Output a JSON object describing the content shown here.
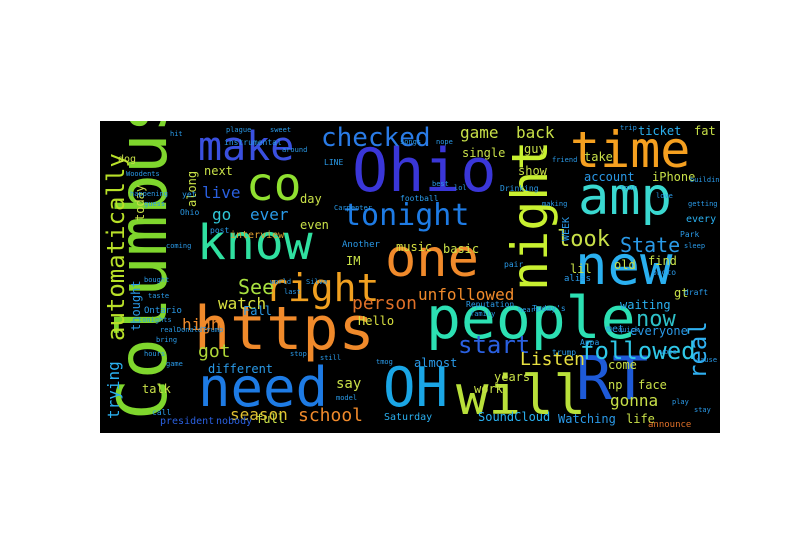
{
  "words": [
    {
      "id": "columbus",
      "text": "Columbus",
      "color": "#7fd62d"
    },
    {
      "id": "https",
      "text": "https",
      "color": "#f08a2b"
    },
    {
      "id": "people",
      "text": "people",
      "color": "#2ce0b3"
    },
    {
      "id": "ohio",
      "text": "Ohio",
      "color": "#3a36d8"
    },
    {
      "id": "oh",
      "text": "OH",
      "color": "#1aa6e6"
    },
    {
      "id": "will",
      "text": "will",
      "color": "#b9e03a"
    },
    {
      "id": "rt",
      "text": "RT",
      "color": "#1e5ad8"
    },
    {
      "id": "need",
      "text": "need",
      "color": "#1e7be4"
    },
    {
      "id": "know",
      "text": "know",
      "color": "#30e0a0"
    },
    {
      "id": "one",
      "text": "one",
      "color": "#f08a2b"
    },
    {
      "id": "new",
      "text": "new",
      "color": "#2ab0f0"
    },
    {
      "id": "amp",
      "text": "amp",
      "color": "#3ad8d0"
    },
    {
      "id": "time",
      "text": "time",
      "color": "#f5a020"
    },
    {
      "id": "night",
      "text": "night",
      "color": "#c8f030"
    },
    {
      "id": "co",
      "text": "co",
      "color": "#8fe030"
    },
    {
      "id": "make",
      "text": "make",
      "color": "#3a50e0"
    },
    {
      "id": "right",
      "text": "right",
      "color": "#f0a020"
    },
    {
      "id": "tonight",
      "text": "tonight",
      "color": "#1e7be4"
    },
    {
      "id": "checked",
      "text": "checked",
      "color": "#2a7be6"
    },
    {
      "id": "automatically",
      "text": "automatically",
      "color": "#b8e028"
    },
    {
      "id": "followed",
      "text": "followed",
      "color": "#30c8e8"
    },
    {
      "id": "real",
      "text": "real",
      "color": "#30b0f0"
    },
    {
      "id": "now",
      "text": "now",
      "color": "#2ec0c8"
    },
    {
      "id": "look",
      "text": "look",
      "color": "#c8e048"
    },
    {
      "id": "state",
      "text": "State",
      "color": "#2a9ae8"
    },
    {
      "id": "start",
      "text": "start",
      "color": "#2a60e0"
    },
    {
      "id": "person",
      "text": "person",
      "color": "#e07028"
    },
    {
      "id": "unfollowed",
      "text": "unfollowed",
      "color": "#f08a2b"
    },
    {
      "id": "listen",
      "text": "Listen",
      "color": "#e8e040"
    },
    {
      "id": "school",
      "text": "school",
      "color": "#f08a2b"
    },
    {
      "id": "see",
      "text": "See",
      "color": "#a8e040"
    },
    {
      "id": "watch",
      "text": "watch",
      "color": "#d8e040"
    },
    {
      "id": "got",
      "text": "got",
      "color": "#b0d838"
    },
    {
      "id": "high",
      "text": "high",
      "color": "#f08a2b"
    },
    {
      "id": "season",
      "text": "season",
      "color": "#e0c030"
    },
    {
      "id": "go",
      "text": "go",
      "color": "#30c8d8"
    },
    {
      "id": "ever",
      "text": "ever",
      "color": "#2a9ae8"
    },
    {
      "id": "live",
      "text": "live",
      "color": "#2a60e0"
    },
    {
      "id": "game",
      "text": "game",
      "color": "#c8e048"
    },
    {
      "id": "back",
      "text": "back",
      "color": "#c8e048"
    },
    {
      "id": "trying",
      "text": "trying",
      "color": "#2ab0f0"
    },
    {
      "id": "gonna",
      "text": "gonna",
      "color": "#c8e048"
    },
    {
      "id": "say",
      "text": "say",
      "color": "#c8e048"
    },
    {
      "id": "fall",
      "text": "Fall",
      "color": "#2a9ae8"
    },
    {
      "id": "hello",
      "text": "Hello",
      "color": "#d8e040"
    },
    {
      "id": "music",
      "text": "music",
      "color": "#d8e040"
    },
    {
      "id": "basic",
      "text": "basic",
      "color": "#c8e048"
    },
    {
      "id": "ticket",
      "text": "ticket",
      "color": "#2ab0f0"
    },
    {
      "id": "fat",
      "text": "fat",
      "color": "#c8e048"
    },
    {
      "id": "iphone",
      "text": "iPhone",
      "color": "#c8e048"
    },
    {
      "id": "take",
      "text": "take",
      "color": "#c8e048"
    },
    {
      "id": "come",
      "text": "come",
      "color": "#c8e048"
    },
    {
      "id": "old",
      "text": "old",
      "color": "#c8e048"
    },
    {
      "id": "find",
      "text": "find",
      "color": "#c8e048"
    },
    {
      "id": "gt",
      "text": "gt",
      "color": "#c8e048"
    },
    {
      "id": "lil",
      "text": "lil",
      "color": "#c8e048"
    },
    {
      "id": "everyone",
      "text": "everyone",
      "color": "#2a9ae8"
    },
    {
      "id": "face",
      "text": "face",
      "color": "#c8e048"
    },
    {
      "id": "np",
      "text": "np",
      "color": "#c8e048"
    },
    {
      "id": "waiting",
      "text": "waiting",
      "color": "#2ab0f0"
    },
    {
      "id": "life",
      "text": "life",
      "color": "#c8e048"
    },
    {
      "id": "watching",
      "text": "Watching",
      "color": "#2a9ae8"
    },
    {
      "id": "soundcloud",
      "text": "SoundCloud",
      "color": "#2ab0f0"
    },
    {
      "id": "saturday",
      "text": "Saturday",
      "color": "#2ab0f0"
    },
    {
      "id": "full",
      "text": "full",
      "color": "#c8e048"
    },
    {
      "id": "different",
      "text": "different",
      "color": "#2a9ae8"
    },
    {
      "id": "talk",
      "text": "talk",
      "color": "#c8e048"
    },
    {
      "id": "years",
      "text": "years",
      "color": "#c8e048"
    },
    {
      "id": "work",
      "text": "work",
      "color": "#c8e048"
    },
    {
      "id": "almost",
      "text": "almost",
      "color": "#2a9ae8"
    },
    {
      "id": "day",
      "text": "day",
      "color": "#c8e048"
    },
    {
      "id": "even",
      "text": "even",
      "color": "#c8e048"
    },
    {
      "id": "interview",
      "text": "interview",
      "color": "#e0a030"
    },
    {
      "id": "single",
      "text": "single",
      "color": "#c8e048"
    },
    {
      "id": "show",
      "text": "show",
      "color": "#c8e048"
    },
    {
      "id": "account",
      "text": "account",
      "color": "#2a9ae8"
    },
    {
      "id": "guy",
      "text": "guy",
      "color": "#c8e048"
    },
    {
      "id": "thought",
      "text": "thought",
      "color": "#2a9ae8"
    },
    {
      "id": "along",
      "text": "along",
      "color": "#c8e048"
    },
    {
      "id": "next",
      "text": "next",
      "color": "#c8e048"
    },
    {
      "id": "today",
      "text": "today",
      "color": "#c8e048"
    },
    {
      "id": "im",
      "text": "IM",
      "color": "#c8e048"
    },
    {
      "id": "another",
      "text": "Another",
      "color": "#2a9ae8"
    },
    {
      "id": "president",
      "text": "president",
      "color": "#2a60e0"
    },
    {
      "id": "nobody",
      "text": "nobody",
      "color": "#2a60e0"
    },
    {
      "id": "announce",
      "text": "announce",
      "color": "#e07028"
    },
    {
      "id": "dog",
      "text": "dog",
      "color": "#c8e048"
    },
    {
      "id": "week",
      "text": "WEEK",
      "color": "#2a9ae8"
    },
    {
      "id": "met",
      "text": "met",
      "color": "#2a9ae8"
    },
    {
      "id": "every",
      "text": "every",
      "color": "#2ab0f0"
    },
    {
      "id": "appa",
      "text": "Appa",
      "color": "#2a9ae8"
    },
    {
      "id": "alias",
      "text": "alias",
      "color": "#2a9ae8"
    },
    {
      "id": "pair",
      "text": "pair",
      "color": "#2a9ae8"
    },
    {
      "id": "ontario",
      "text": "Ontario",
      "color": "#2a9ae8"
    },
    {
      "id": "call",
      "text": "call",
      "color": "#2a9ae8"
    },
    {
      "id": "post",
      "text": "post",
      "color": "#2a9ae8"
    },
    {
      "id": "football",
      "text": "football",
      "color": "#2a9ae8"
    },
    {
      "id": "drinking",
      "text": "Drinking",
      "color": "#2a9ae8"
    },
    {
      "id": "trump",
      "text": "trump",
      "color": "#2a9ae8"
    },
    {
      "id": "photo",
      "text": "photo",
      "color": "#2a9ae8"
    },
    {
      "id": "reputation",
      "text": "Reputation",
      "color": "#2a9ae8"
    },
    {
      "id": "park",
      "text": "Park",
      "color": "#2a9ae8"
    },
    {
      "id": "todays",
      "text": "Today's",
      "color": "#2a9ae8"
    },
    {
      "id": "carpenter",
      "text": "Carpenter",
      "color": "#2a9ae8"
    },
    {
      "id": "line",
      "text": "LINE",
      "color": "#2a9ae8"
    },
    {
      "id": "instrumental",
      "text": "instrumental",
      "color": "#2a9ae8"
    },
    {
      "id": "building",
      "text": "building",
      "color": "#2a9ae8"
    },
    {
      "id": "getting",
      "text": "getting",
      "color": "#2a9ae8"
    },
    {
      "id": "yet",
      "text": "yet",
      "color": "#2a9ae8"
    },
    {
      "id": "draft",
      "text": "draft",
      "color": "#2a9ae8"
    },
    {
      "id": "ohio2",
      "text": "Ohio",
      "color": "#2a9ae8"
    },
    {
      "id": "songs",
      "text": "songs",
      "color": "#2a9ae8"
    },
    {
      "id": "nope",
      "text": "nope",
      "color": "#2a9ae8"
    },
    {
      "id": "realdonaldtrump",
      "text": "realDonaldTrump",
      "color": "#2a9ae8"
    },
    {
      "id": "model",
      "text": "model",
      "color": "#2a9ae8"
    },
    {
      "id": "tmog",
      "text": "tmog",
      "color": "#2a9ae8"
    },
    {
      "id": "silva",
      "text": "Silva",
      "color": "#2a9ae8"
    },
    {
      "id": "world",
      "text": "world",
      "color": "#2a9ae8"
    },
    {
      "id": "last",
      "text": "last",
      "color": "#2a9ae8"
    },
    {
      "id": "still",
      "text": "still",
      "color": "#2a9ae8"
    },
    {
      "id": "stop",
      "text": "stop",
      "color": "#2a9ae8"
    },
    {
      "id": "hours",
      "text": "hours",
      "color": "#2a9ae8"
    },
    {
      "id": "bring",
      "text": "bring",
      "color": "#2a9ae8"
    },
    {
      "id": "game2",
      "text": "game",
      "color": "#2a9ae8"
    },
    {
      "id": "quick",
      "text": "quick",
      "color": "#2a9ae8"
    },
    {
      "id": "heart",
      "text": "heart",
      "color": "#2a9ae8"
    },
    {
      "id": "family",
      "text": "family",
      "color": "#2a9ae8"
    },
    {
      "id": "sweet",
      "text": "sweet",
      "color": "#2a9ae8"
    },
    {
      "id": "plague",
      "text": "plague",
      "color": "#2a9ae8"
    },
    {
      "id": "hit",
      "text": "hit",
      "color": "#2a9ae8"
    },
    {
      "id": "around",
      "text": "around",
      "color": "#2a9ae8"
    },
    {
      "id": "tour",
      "text": "tour",
      "color": "#2a9ae8"
    },
    {
      "id": "love",
      "text": "love",
      "color": "#2a9ae8"
    },
    {
      "id": "friend",
      "text": "friend",
      "color": "#2a9ae8"
    },
    {
      "id": "making",
      "text": "making",
      "color": "#2a9ae8"
    },
    {
      "id": "best",
      "text": "best",
      "color": "#2a9ae8"
    },
    {
      "id": "lol",
      "text": "lol",
      "color": "#2a9ae8"
    },
    {
      "id": "trip",
      "text": "trip",
      "color": "#2a9ae8"
    },
    {
      "id": "coming",
      "text": "coming",
      "color": "#2a9ae8"
    },
    {
      "id": "woodents",
      "text": "Woodents",
      "color": "#2a9ae8"
    },
    {
      "id": "happening",
      "text": "happening",
      "color": "#2a9ae8"
    },
    {
      "id": "guess",
      "text": "guess",
      "color": "#2a9ae8"
    },
    {
      "id": "tonights",
      "text": "tonights",
      "color": "#2a9ae8"
    },
    {
      "id": "taste",
      "text": "taste",
      "color": "#2a9ae8"
    },
    {
      "id": "bought",
      "text": "bought",
      "color": "#2a9ae8"
    },
    {
      "id": "sleep",
      "text": "sleep",
      "color": "#2a9ae8"
    },
    {
      "id": "vote",
      "text": "vote",
      "color": "#2a9ae8"
    },
    {
      "id": "cause",
      "text": "cause",
      "color": "#2a9ae8"
    },
    {
      "id": "stay",
      "text": "stay",
      "color": "#2a9ae8"
    },
    {
      "id": "play",
      "text": "play",
      "color": "#2a9ae8"
    }
  ]
}
